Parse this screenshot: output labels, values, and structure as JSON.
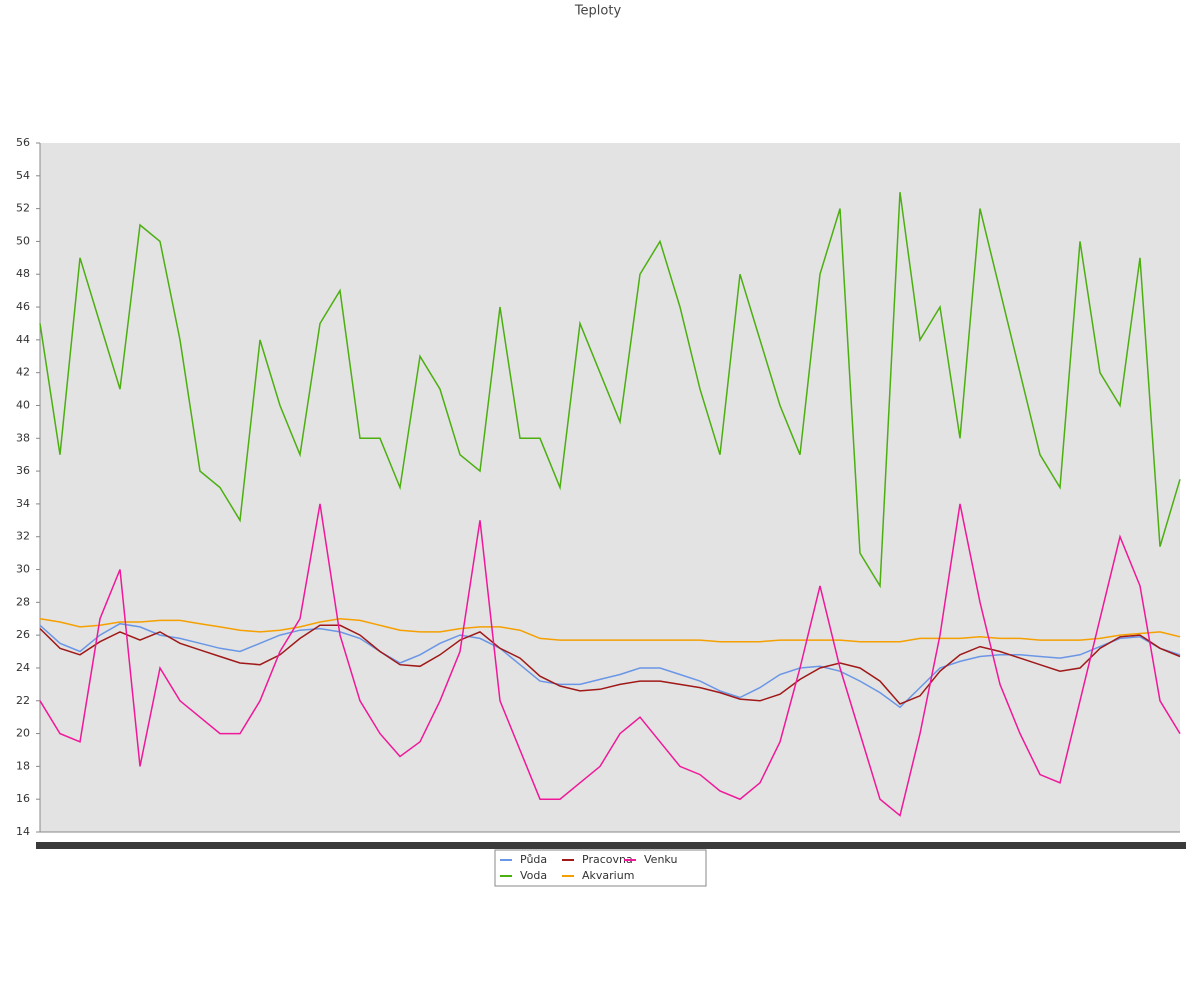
{
  "chart_data": {
    "type": "line",
    "title": "Teploty",
    "categories": [
      null,
      null,
      null,
      null,
      null,
      null,
      null,
      null,
      null,
      null,
      null,
      null,
      null,
      null,
      null,
      null,
      null,
      null,
      null,
      null,
      null,
      null,
      null,
      null,
      null,
      null,
      null,
      null,
      null,
      null,
      null,
      null,
      null,
      null,
      null,
      null,
      null,
      null,
      null,
      null,
      null,
      null,
      null,
      null,
      null,
      null,
      null,
      null,
      null,
      null,
      null,
      null,
      null,
      null,
      null,
      null,
      null,
      null
    ],
    "ylim": [
      14,
      56
    ],
    "yticks": [
      14,
      16,
      18,
      20,
      22,
      24,
      26,
      28,
      30,
      32,
      34,
      36,
      38,
      40,
      42,
      44,
      46,
      48,
      50,
      52,
      54,
      56
    ],
    "legend": "bottom",
    "series": [
      {
        "name": "Půda",
        "color": "#6a96e6",
        "values": [
          26.6,
          25.5,
          25,
          26,
          26.7,
          26.5,
          26,
          25.8,
          25.5,
          25.2,
          25,
          25.5,
          26,
          26.3,
          26.4,
          26.2,
          25.8,
          25,
          24.3,
          24.8,
          25.5,
          26,
          25.8,
          25.2,
          24.2,
          23.2,
          23,
          23,
          23.3,
          23.6,
          24,
          24,
          23.6,
          23.2,
          22.6,
          22.2,
          22.8,
          23.6,
          24,
          24.1,
          23.8,
          23.2,
          22.5,
          21.6,
          22.8,
          24,
          24.4,
          24.7,
          24.8,
          24.8,
          24.7,
          24.6,
          24.8,
          25.3,
          25.8,
          25.9,
          25.2,
          24.8
        ]
      },
      {
        "name": "Voda",
        "color": "#4caf10",
        "values": [
          45,
          37,
          49,
          45,
          41,
          51,
          50,
          44,
          36,
          35,
          33,
          44,
          40,
          37,
          45,
          47,
          38,
          38,
          35,
          43,
          41,
          37,
          36,
          46,
          38,
          38,
          35,
          45,
          42,
          39,
          48,
          50,
          46,
          41,
          37,
          48,
          44,
          40,
          37,
          48,
          52,
          31,
          29,
          53,
          44,
          46,
          38,
          52,
          47,
          42,
          37,
          35,
          50,
          42,
          40,
          49,
          31.4,
          35.5
        ]
      },
      {
        "name": "Pracovna",
        "color": "#a01818",
        "values": [
          26.4,
          25.2,
          24.8,
          25.6,
          26.2,
          25.7,
          26.2,
          25.5,
          25.1,
          24.7,
          24.3,
          24.2,
          24.8,
          25.8,
          26.6,
          26.6,
          26,
          25,
          24.2,
          24.1,
          24.8,
          25.7,
          26.2,
          25.2,
          24.6,
          23.5,
          22.9,
          22.6,
          22.7,
          23,
          23.2,
          23.2,
          23,
          22.8,
          22.5,
          22.1,
          22,
          22.4,
          23.3,
          24,
          24.3,
          24,
          23.2,
          21.8,
          22.3,
          23.8,
          24.8,
          25.3,
          25,
          24.6,
          24.2,
          23.8,
          24,
          25.2,
          25.9,
          26,
          25.2,
          24.7
        ]
      },
      {
        "name": "Akvarium",
        "color": "#f5a000",
        "values": [
          27,
          26.8,
          26.5,
          26.6,
          26.8,
          26.8,
          26.9,
          26.9,
          26.7,
          26.5,
          26.3,
          26.2,
          26.3,
          26.5,
          26.8,
          27,
          26.9,
          26.6,
          26.3,
          26.2,
          26.2,
          26.4,
          26.5,
          26.5,
          26.3,
          25.8,
          25.7,
          25.7,
          25.7,
          25.7,
          25.7,
          25.7,
          25.7,
          25.7,
          25.6,
          25.6,
          25.6,
          25.7,
          25.7,
          25.7,
          25.7,
          25.6,
          25.6,
          25.6,
          25.8,
          25.8,
          25.8,
          25.9,
          25.8,
          25.8,
          25.7,
          25.7,
          25.7,
          25.8,
          26,
          26.1,
          26.2,
          25.9
        ]
      },
      {
        "name": "Venku",
        "color": "#f0189a",
        "values": [
          22,
          20,
          19.5,
          27,
          30,
          18,
          24,
          22,
          21,
          20,
          20,
          22,
          25,
          27,
          34,
          26,
          22,
          20,
          18.6,
          19.5,
          22,
          25,
          33,
          22,
          19,
          16,
          16,
          17,
          18,
          20,
          21,
          19.5,
          18,
          17.5,
          16.5,
          16,
          17,
          19.5,
          24,
          29,
          24,
          20,
          16,
          15,
          20,
          26,
          34,
          28,
          23,
          20,
          17.5,
          17,
          22,
          27,
          32,
          29,
          22,
          20
        ]
      }
    ]
  }
}
